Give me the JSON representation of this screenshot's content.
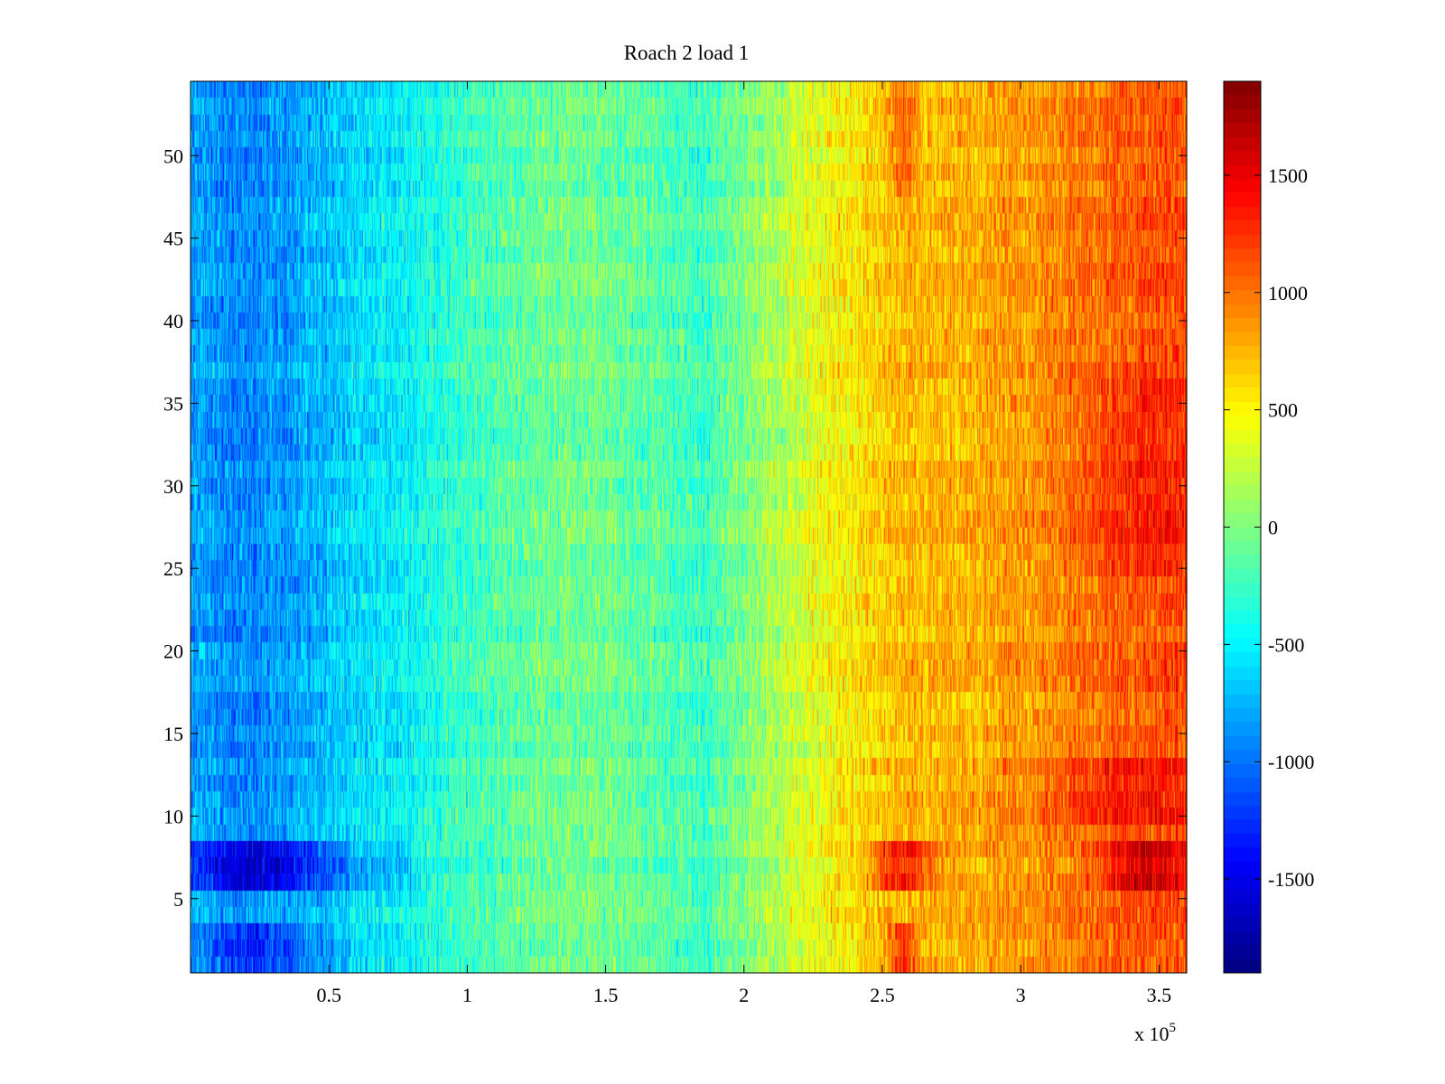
{
  "chart_data": {
    "type": "heatmap",
    "title": "Roach 2 load 1",
    "xlabel": "",
    "ylabel": "",
    "x_multiplier_label": "x 10",
    "x_multiplier_exponent": "5",
    "xlim": [
      0.0,
      3.6
    ],
    "ylim": [
      0.5,
      54.5
    ],
    "rows": 54,
    "x_ticks": [
      0.5,
      1,
      1.5,
      2,
      2.5,
      3,
      3.5
    ],
    "x_tick_labels": [
      "0.5",
      "1",
      "1.5",
      "2",
      "2.5",
      "3",
      "3.5"
    ],
    "y_ticks": [
      5,
      10,
      15,
      20,
      25,
      30,
      35,
      40,
      45,
      50
    ],
    "y_tick_labels": [
      "5",
      "10",
      "15",
      "20",
      "25",
      "30",
      "35",
      "40",
      "45",
      "50"
    ],
    "clim": [
      -1900,
      1900
    ],
    "colorbar_ticks": [
      -1500,
      -1000,
      -500,
      0,
      500,
      1000,
      1500
    ],
    "colorbar_tick_labels": [
      "-1500",
      "-1000",
      "-500",
      "0",
      "500",
      "1000",
      "1500"
    ],
    "colormap": "jet",
    "x_trend_profile": {
      "x": [
        0.0,
        0.2,
        0.5,
        0.8,
        1.0,
        1.3,
        1.6,
        1.85,
        2.1,
        2.3,
        2.55,
        2.8,
        3.1,
        3.4,
        3.6
      ],
      "value": [
        -800,
        -950,
        -700,
        -450,
        -250,
        -50,
        -100,
        -250,
        150,
        450,
        700,
        750,
        900,
        1100,
        1150
      ]
    },
    "highlighted_rows": [
      {
        "row": 7,
        "description": "strong extremes: dark blue near x=0.25, dark red near x=2.55 and x=3.5"
      },
      {
        "row": 2,
        "description": "blue near x=0.25, red near x=2.55"
      }
    ]
  }
}
